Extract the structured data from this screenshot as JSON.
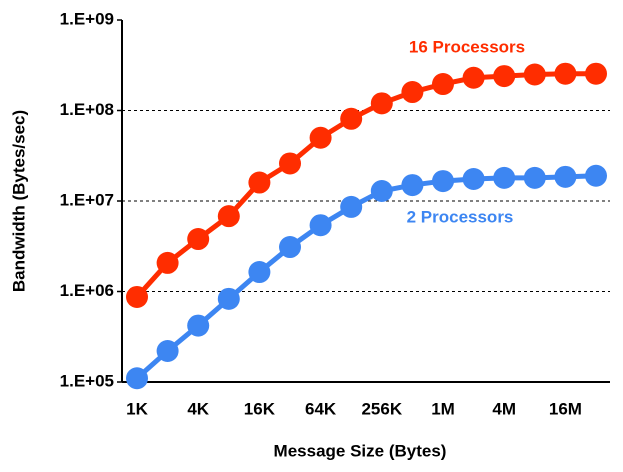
{
  "chart_data": {
    "type": "line",
    "x_label": "Message Size (Bytes)",
    "y_label": "Bandwidth (Bytes/sec)",
    "categories": [
      "1K",
      null,
      "4K",
      null,
      "16K",
      null,
      "64K",
      null,
      "256K",
      null,
      "1M",
      null,
      "4M",
      null,
      "16M",
      null
    ],
    "log_y": true,
    "ylim": [
      100000,
      1000000000
    ],
    "yticks": [
      {
        "value": 100000,
        "label": "1.E+05"
      },
      {
        "value": 1000000,
        "label": "1.E+06"
      },
      {
        "value": 10000000,
        "label": "1.E+07"
      },
      {
        "value": 100000000,
        "label": "1.E+08"
      },
      {
        "value": 1000000000,
        "label": "1.E+09"
      }
    ],
    "grid": true,
    "series": [
      {
        "name": "16 Processors",
        "color": "#ff2d00",
        "values": [
          870000,
          2070000,
          3800000,
          6800000,
          16000000,
          26000000,
          50000000,
          81000000,
          120000000,
          160000000,
          196000000,
          230000000,
          240000000,
          250000000,
          255000000,
          255000000
        ]
      },
      {
        "name": "2 Processors",
        "color": "#3d86f2",
        "values": [
          110000,
          220000,
          420000,
          830000,
          1640000,
          3100000,
          5400000,
          8600000,
          12900000,
          15000000,
          16600000,
          17500000,
          18000000,
          18000000,
          18500000,
          19000000
        ]
      }
    ]
  }
}
